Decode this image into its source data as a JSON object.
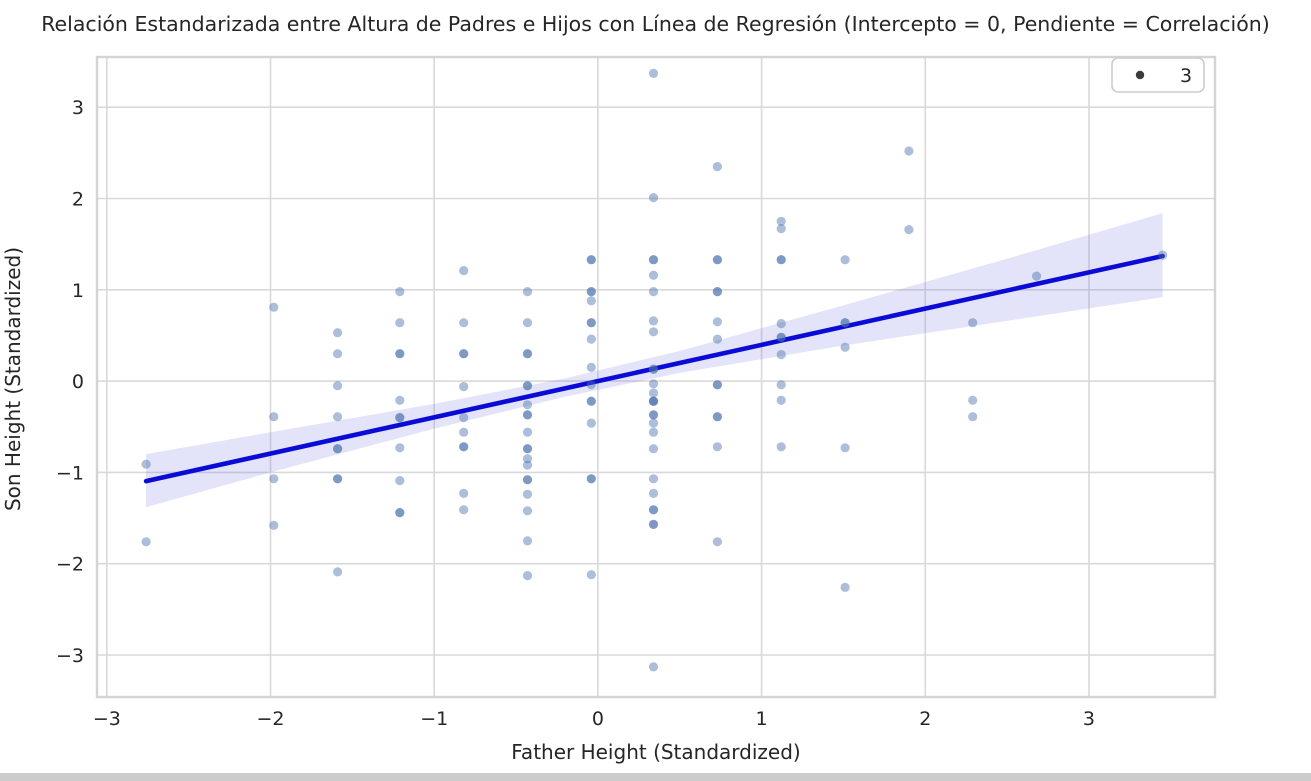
{
  "figure": {
    "title": "Relación Estandarizada entre Altura de Padres e Hijos con Línea de Regresión (Intercepto = 0, Pendiente = Correlación)",
    "x_axis_label": "Father Height (Standardized)",
    "y_axis_label": "Son Height (Standardized)"
  },
  "chart_data": {
    "type": "scatter",
    "title": "Relación Estandarizada entre Altura de Padres e Hijos con Línea de Regresión (Intercepto = 0, Pendiente = Correlación)",
    "xlabel": "Father Height (Standardized)",
    "ylabel": "Son Height (Standardized)",
    "xlim": [
      -3.06,
      3.77
    ],
    "ylim": [
      -3.46,
      3.55
    ],
    "xticks": [
      -3,
      -2,
      -1,
      0,
      1,
      2,
      3
    ],
    "yticks": [
      3,
      2,
      1,
      0,
      -1,
      -2,
      -3
    ],
    "xtick_labels": [
      "−3",
      "−2",
      "−1",
      "0",
      "1",
      "2",
      "3"
    ],
    "ytick_labels": [
      "3",
      "2",
      "1",
      "0",
      "−1",
      "−2",
      "−3"
    ],
    "grid": true,
    "legend": {
      "position": "upper right",
      "entries": [
        {
          "marker": "dot",
          "label": "3"
        }
      ]
    },
    "regression_line": {
      "intercept": 0,
      "slope": 0.397,
      "x_start": -2.76,
      "x_end": 3.45
    },
    "confidence_band": {
      "x": [
        -2.76,
        -2.0,
        -1.0,
        -0.2,
        0.5,
        1.5,
        2.5,
        3.45
      ],
      "upper": [
        -0.8,
        -0.56,
        -0.25,
        0.03,
        0.33,
        0.83,
        1.34,
        1.84
      ],
      "lower": [
        -1.38,
        -1.0,
        -0.52,
        -0.17,
        0.09,
        0.39,
        0.66,
        0.92
      ]
    },
    "points": [
      [
        -2.76,
        -0.91,
        1
      ],
      [
        -2.76,
        -1.76,
        1
      ],
      [
        -1.98,
        0.81,
        1
      ],
      [
        -1.98,
        -0.39,
        1
      ],
      [
        -1.98,
        -1.07,
        1
      ],
      [
        -1.98,
        -1.58,
        1
      ],
      [
        -1.59,
        0.53,
        1
      ],
      [
        -1.59,
        0.3,
        1
      ],
      [
        -1.59,
        -0.05,
        1
      ],
      [
        -1.59,
        -0.39,
        1
      ],
      [
        -1.59,
        -0.74,
        2
      ],
      [
        -1.59,
        -1.07,
        2
      ],
      [
        -1.59,
        -2.09,
        1
      ],
      [
        -1.21,
        0.98,
        1
      ],
      [
        -1.21,
        0.64,
        1
      ],
      [
        -1.21,
        0.3,
        2
      ],
      [
        -1.21,
        -0.21,
        1
      ],
      [
        -1.21,
        -0.4,
        2
      ],
      [
        -1.21,
        -0.73,
        1
      ],
      [
        -1.21,
        -1.09,
        1
      ],
      [
        -1.21,
        -1.44,
        2
      ],
      [
        -0.82,
        1.21,
        1
      ],
      [
        -0.82,
        0.64,
        1
      ],
      [
        -0.82,
        0.3,
        2
      ],
      [
        -0.82,
        -0.06,
        1
      ],
      [
        -0.82,
        -0.4,
        1
      ],
      [
        -0.82,
        -0.56,
        1
      ],
      [
        -0.82,
        -0.72,
        2
      ],
      [
        -0.82,
        -1.23,
        1
      ],
      [
        -0.82,
        -1.41,
        1
      ],
      [
        -0.43,
        0.98,
        1
      ],
      [
        -0.43,
        0.64,
        1
      ],
      [
        -0.43,
        0.3,
        2
      ],
      [
        -0.43,
        -0.05,
        2
      ],
      [
        -0.43,
        -0.26,
        1
      ],
      [
        -0.43,
        -0.37,
        2
      ],
      [
        -0.43,
        -0.56,
        1
      ],
      [
        -0.43,
        -0.74,
        2
      ],
      [
        -0.43,
        -0.85,
        1
      ],
      [
        -0.43,
        -0.92,
        1
      ],
      [
        -0.43,
        -1.08,
        2
      ],
      [
        -0.43,
        -1.24,
        1
      ],
      [
        -0.43,
        -1.42,
        1
      ],
      [
        -0.43,
        -1.75,
        1
      ],
      [
        -0.43,
        -2.13,
        1
      ],
      [
        -0.04,
        1.33,
        2
      ],
      [
        -0.04,
        0.98,
        2
      ],
      [
        -0.04,
        0.88,
        1
      ],
      [
        -0.04,
        0.64,
        2
      ],
      [
        -0.04,
        0.46,
        1
      ],
      [
        -0.04,
        0.15,
        1
      ],
      [
        -0.04,
        -0.04,
        1
      ],
      [
        -0.04,
        -0.22,
        2
      ],
      [
        -0.04,
        -0.46,
        1
      ],
      [
        -0.04,
        -1.07,
        2
      ],
      [
        -0.04,
        -2.12,
        1
      ],
      [
        0.34,
        3.37,
        1
      ],
      [
        0.34,
        2.01,
        1
      ],
      [
        0.34,
        1.33,
        2
      ],
      [
        0.34,
        1.16,
        1
      ],
      [
        0.34,
        0.98,
        1
      ],
      [
        0.34,
        0.66,
        1
      ],
      [
        0.34,
        0.54,
        1
      ],
      [
        0.34,
        0.13,
        2
      ],
      [
        0.34,
        -0.03,
        1
      ],
      [
        0.34,
        -0.13,
        1
      ],
      [
        0.34,
        -0.22,
        3
      ],
      [
        0.34,
        -0.37,
        2
      ],
      [
        0.34,
        -0.46,
        1
      ],
      [
        0.34,
        -0.56,
        1
      ],
      [
        0.34,
        -0.74,
        1
      ],
      [
        0.34,
        -1.07,
        1
      ],
      [
        0.34,
        -1.23,
        1
      ],
      [
        0.34,
        -1.41,
        2
      ],
      [
        0.34,
        -1.57,
        2
      ],
      [
        0.34,
        -3.13,
        1
      ],
      [
        0.73,
        2.35,
        1
      ],
      [
        0.73,
        1.33,
        2
      ],
      [
        0.73,
        0.98,
        2
      ],
      [
        0.73,
        0.65,
        1
      ],
      [
        0.73,
        0.46,
        1
      ],
      [
        0.73,
        -0.04,
        2
      ],
      [
        0.73,
        -0.39,
        2
      ],
      [
        0.73,
        -0.72,
        1
      ],
      [
        0.73,
        -1.76,
        1
      ],
      [
        1.12,
        1.75,
        1
      ],
      [
        1.12,
        1.67,
        1
      ],
      [
        1.12,
        1.33,
        2
      ],
      [
        1.12,
        0.63,
        1
      ],
      [
        1.12,
        0.48,
        2
      ],
      [
        1.12,
        0.29,
        1
      ],
      [
        1.12,
        -0.04,
        1
      ],
      [
        1.12,
        -0.21,
        1
      ],
      [
        1.12,
        -0.72,
        1
      ],
      [
        1.51,
        1.33,
        1
      ],
      [
        1.51,
        0.64,
        2
      ],
      [
        1.51,
        0.37,
        1
      ],
      [
        1.51,
        -0.73,
        1
      ],
      [
        1.51,
        -2.26,
        1
      ],
      [
        1.9,
        2.52,
        1
      ],
      [
        1.9,
        1.66,
        1
      ],
      [
        2.29,
        0.64,
        1
      ],
      [
        2.29,
        -0.21,
        1
      ],
      [
        2.29,
        -0.39,
        1
      ],
      [
        2.68,
        1.15,
        1
      ],
      [
        3.45,
        1.38,
        1
      ]
    ],
    "colors": {
      "point": "rgba(70,110,170,0.45)",
      "regression_line": "#0b0bd6",
      "confidence_band": "rgba(100,100,220,0.18)",
      "grid": "#d9d9d9",
      "border": "#d4d4d4",
      "legend_marker": "#3b3b3b",
      "text": "#262626"
    }
  }
}
